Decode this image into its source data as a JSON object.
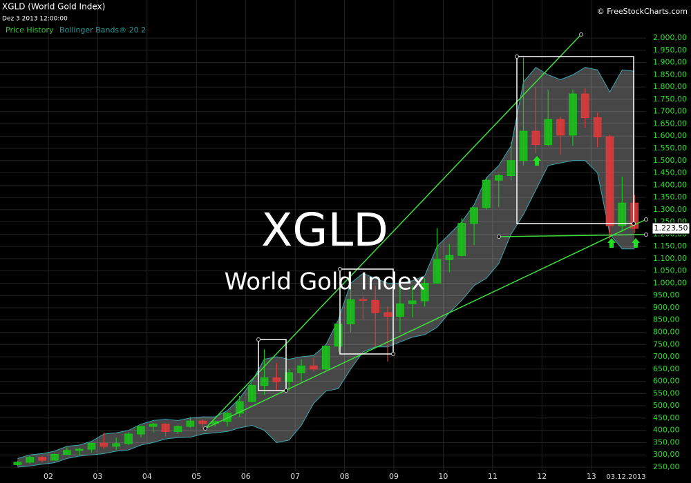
{
  "chart_data": {
    "type": "candlestick",
    "title": "XGLD (World Gold Index)",
    "subtitle": "Dez 3 2013 12:00:00",
    "source": "© FreeStockCharts.com",
    "watermark": "XGLD",
    "watermark_subtitle": "World Gold Index",
    "cursor_date": "03.12.2013",
    "legend": [
      "Price History",
      "Bollinger Bands® 20 2"
    ],
    "up_color": "#19c419",
    "down_color": "#e23a3a",
    "band_color": "#3aa6b0",
    "x": [
      2001.375,
      2001.625,
      2001.875,
      2002.125,
      2002.375,
      2002.625,
      2002.875,
      2003.125,
      2003.375,
      2003.625,
      2003.875,
      2004.125,
      2004.375,
      2004.625,
      2004.875,
      2005.125,
      2005.375,
      2005.625,
      2005.875,
      2006.125,
      2006.375,
      2006.625,
      2006.875,
      2007.125,
      2007.375,
      2007.625,
      2007.875,
      2008.125,
      2008.375,
      2008.625,
      2008.875,
      2009.125,
      2009.375,
      2009.625,
      2009.875,
      2010.125,
      2010.375,
      2010.625,
      2010.875,
      2011.125,
      2011.375,
      2011.625,
      2011.875,
      2012.125,
      2012.375,
      2012.625,
      2012.875,
      2013.125,
      2013.375,
      2013.625,
      2013.875
    ],
    "open": [
      260,
      270,
      290,
      278,
      302,
      318,
      323,
      347,
      335,
      346,
      385,
      416,
      426,
      395,
      416,
      438,
      428,
      436,
      470,
      517,
      583,
      614,
      598,
      635,
      663,
      650,
      743,
      834,
      933,
      930,
      880,
      865,
      916,
      928,
      1000,
      1096,
      1113,
      1244,
      1308,
      1420,
      1439,
      1500,
      1620,
      1565,
      1668,
      1604,
      1772,
      1675,
      1597,
      1234,
      1327
    ],
    "high": [
      275,
      295,
      295,
      305,
      330,
      328,
      350,
      390,
      370,
      392,
      417,
      430,
      430,
      420,
      455,
      445,
      440,
      475,
      540,
      590,
      730,
      675,
      650,
      690,
      695,
      745,
      845,
      1030,
      950,
      990,
      905,
      1005,
      990,
      1020,
      1225,
      1160,
      1265,
      1310,
      1430,
      1445,
      1575,
      1920,
      1800,
      1790,
      1680,
      1790,
      1795,
      1695,
      1605,
      1435,
      1360
    ],
    "low": [
      255,
      265,
      270,
      277,
      300,
      300,
      310,
      325,
      320,
      340,
      370,
      390,
      375,
      385,
      410,
      410,
      415,
      415,
      455,
      515,
      545,
      560,
      560,
      600,
      640,
      645,
      720,
      800,
      850,
      740,
      680,
      800,
      860,
      905,
      1000,
      1045,
      1110,
      1155,
      1300,
      1310,
      1420,
      1480,
      1530,
      1560,
      1525,
      1560,
      1635,
      1555,
      1180,
      1210,
      1205
    ],
    "close": [
      270,
      290,
      278,
      302,
      318,
      323,
      347,
      335,
      346,
      385,
      416,
      426,
      395,
      416,
      438,
      428,
      436,
      470,
      517,
      583,
      614,
      598,
      635,
      663,
      650,
      743,
      834,
      933,
      930,
      880,
      865,
      916,
      928,
      1000,
      1096,
      1113,
      1244,
      1308,
      1420,
      1439,
      1500,
      1620,
      1565,
      1668,
      1604,
      1772,
      1675,
      1597,
      1234,
      1327,
      1223.5
    ],
    "close_value_label": "1.223,50",
    "bands": {
      "upper": [
        285,
        300,
        305,
        315,
        335,
        340,
        355,
        385,
        390,
        400,
        425,
        440,
        445,
        440,
        450,
        455,
        455,
        480,
        530,
        600,
        690,
        700,
        690,
        700,
        705,
        750,
        850,
        1000,
        1040,
        1020,
        1000,
        1000,
        1010,
        1030,
        1150,
        1200,
        1250,
        1320,
        1430,
        1480,
        1560,
        1820,
        1880,
        1850,
        1830,
        1850,
        1880,
        1870,
        1780,
        1870,
        1865
      ],
      "lower": [
        250,
        255,
        262,
        268,
        285,
        295,
        300,
        305,
        315,
        320,
        340,
        350,
        365,
        370,
        372,
        385,
        390,
        395,
        410,
        420,
        400,
        350,
        360,
        420,
        510,
        560,
        570,
        650,
        720,
        740,
        740,
        760,
        780,
        790,
        820,
        880,
        930,
        990,
        1020,
        1080,
        1200,
        1280,
        1380,
        1480,
        1490,
        1500,
        1500,
        1450,
        1200,
        1140,
        1140
      ]
    },
    "xlim": [
      2001.02,
      2014.11
    ],
    "xticks": [
      {
        "value": 2002,
        "label": "02"
      },
      {
        "value": 2003,
        "label": "03"
      },
      {
        "value": 2004,
        "label": "04"
      },
      {
        "value": 2005,
        "label": "05"
      },
      {
        "value": 2006,
        "label": "06"
      },
      {
        "value": 2007,
        "label": "07"
      },
      {
        "value": 2008,
        "label": "08"
      },
      {
        "value": 2009,
        "label": "09"
      },
      {
        "value": 2010,
        "label": "10"
      },
      {
        "value": 2011,
        "label": "11"
      },
      {
        "value": 2012,
        "label": "12"
      },
      {
        "value": 2013,
        "label": "13"
      }
    ],
    "ylim": [
      233,
      2155
    ],
    "yticks": [
      {
        "value": 250,
        "label": "250,00"
      },
      {
        "value": 300,
        "label": "300,00"
      },
      {
        "value": 350,
        "label": "350,00"
      },
      {
        "value": 400,
        "label": "400,00"
      },
      {
        "value": 450,
        "label": "450,00"
      },
      {
        "value": 500,
        "label": "500,00"
      },
      {
        "value": 550,
        "label": "550,00"
      },
      {
        "value": 600,
        "label": "600,00"
      },
      {
        "value": 650,
        "label": "650,00"
      },
      {
        "value": 700,
        "label": "700,00"
      },
      {
        "value": 750,
        "label": "750,00"
      },
      {
        "value": 800,
        "label": "800,00"
      },
      {
        "value": 850,
        "label": "850,00"
      },
      {
        "value": 900,
        "label": "900,00"
      },
      {
        "value": 950,
        "label": "950,00"
      },
      {
        "value": 1000,
        "label": "1.000,00"
      },
      {
        "value": 1050,
        "label": "1.050,00"
      },
      {
        "value": 1100,
        "label": "1.100,00"
      },
      {
        "value": 1150,
        "label": "1.150,00"
      },
      {
        "value": 1200,
        "label": "1.200,00"
      },
      {
        "value": 1250,
        "label": "1.250,00"
      },
      {
        "value": 1300,
        "label": "1.300,00"
      },
      {
        "value": 1350,
        "label": "1.350,00"
      },
      {
        "value": 1400,
        "label": "1.400,00"
      },
      {
        "value": 1450,
        "label": "1.450,00"
      },
      {
        "value": 1500,
        "label": "1.500,00"
      },
      {
        "value": 1550,
        "label": "1.550,00"
      },
      {
        "value": 1600,
        "label": "1.600,00"
      },
      {
        "value": 1650,
        "label": "1.650,00"
      },
      {
        "value": 1700,
        "label": "1.700,00"
      },
      {
        "value": 1750,
        "label": "1.750,00"
      },
      {
        "value": 1800,
        "label": "1.800,00"
      },
      {
        "value": 1850,
        "label": "1.850,00"
      },
      {
        "value": 1900,
        "label": "1.900,00"
      },
      {
        "value": 1950,
        "label": "1.950,00"
      },
      {
        "value": 2000,
        "label": "2.000,00"
      }
    ],
    "grid": true
  }
}
